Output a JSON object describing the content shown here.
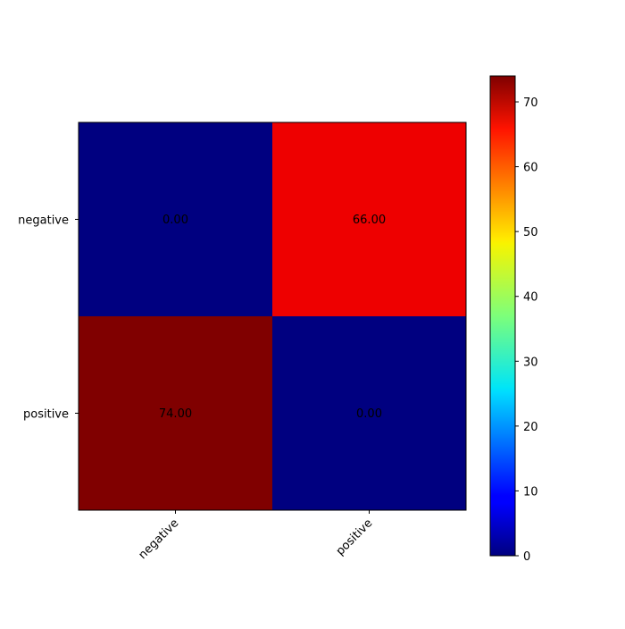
{
  "chart_data": {
    "type": "heatmap",
    "rows": [
      "negative",
      "positive"
    ],
    "columns": [
      "negative",
      "positive"
    ],
    "values": [
      [
        0,
        66
      ],
      [
        74,
        0
      ]
    ],
    "cell_labels": [
      [
        "0.00",
        "66.00"
      ],
      [
        "74.00",
        "0.00"
      ]
    ],
    "colormap": "jet",
    "value_range": [
      0,
      74
    ],
    "colorbar_ticks": [
      "0",
      "10",
      "20",
      "30",
      "40",
      "50",
      "60",
      "70"
    ],
    "colorbar_tick_values": [
      0,
      10,
      20,
      30,
      40,
      50,
      60,
      70
    ],
    "x_tick_rotation_deg": 45,
    "title": "",
    "xlabel": "",
    "ylabel": "",
    "grid": false
  }
}
